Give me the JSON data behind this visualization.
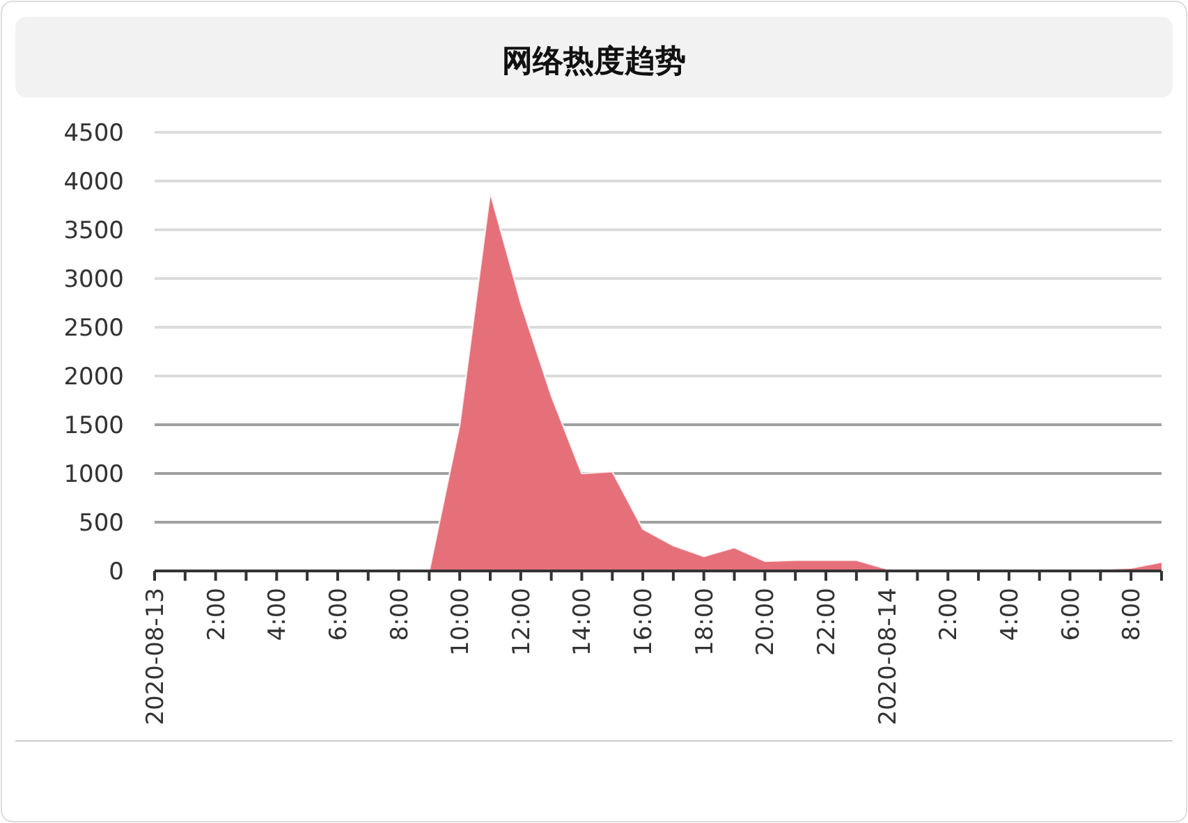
{
  "chart_data": {
    "type": "area",
    "title": "网络热度趋势",
    "x": [
      "2020-08-13T00:00",
      "2020-08-13T01:00",
      "2020-08-13T02:00",
      "2020-08-13T03:00",
      "2020-08-13T04:00",
      "2020-08-13T05:00",
      "2020-08-13T06:00",
      "2020-08-13T07:00",
      "2020-08-13T08:00",
      "2020-08-13T09:00",
      "2020-08-13T10:00",
      "2020-08-13T11:00",
      "2020-08-13T12:00",
      "2020-08-13T13:00",
      "2020-08-13T14:00",
      "2020-08-13T15:00",
      "2020-08-13T16:00",
      "2020-08-13T17:00",
      "2020-08-13T18:00",
      "2020-08-13T19:00",
      "2020-08-13T20:00",
      "2020-08-13T21:00",
      "2020-08-13T22:00",
      "2020-08-13T23:00",
      "2020-08-14T00:00",
      "2020-08-14T01:00",
      "2020-08-14T02:00",
      "2020-08-14T03:00",
      "2020-08-14T04:00",
      "2020-08-14T05:00",
      "2020-08-14T06:00",
      "2020-08-14T07:00",
      "2020-08-14T08:00",
      "2020-08-14T09:00"
    ],
    "series": [
      {
        "color": "#e5707a",
        "values": [
          0,
          0,
          0,
          0,
          0,
          0,
          0,
          0,
          0,
          0,
          1500,
          3880,
          2750,
          1800,
          1000,
          1020,
          430,
          260,
          150,
          240,
          100,
          110,
          110,
          110,
          20,
          0,
          0,
          0,
          0,
          0,
          0,
          20,
          30,
          90
        ]
      }
    ],
    "xlim": [
      "2020-08-13T00:00",
      "2020-08-14T09:00"
    ],
    "xticks": [
      {
        "value": "2020-08-13T00:00",
        "label": "2020-08-13"
      },
      {
        "value": "2020-08-13T01:00",
        "label": null
      },
      {
        "value": "2020-08-13T02:00",
        "label": "2:00"
      },
      {
        "value": "2020-08-13T03:00",
        "label": null
      },
      {
        "value": "2020-08-13T04:00",
        "label": "4:00"
      },
      {
        "value": "2020-08-13T05:00",
        "label": null
      },
      {
        "value": "2020-08-13T06:00",
        "label": "6:00"
      },
      {
        "value": "2020-08-13T07:00",
        "label": null
      },
      {
        "value": "2020-08-13T08:00",
        "label": "8:00"
      },
      {
        "value": "2020-08-13T09:00",
        "label": null
      },
      {
        "value": "2020-08-13T10:00",
        "label": "10:00"
      },
      {
        "value": "2020-08-13T11:00",
        "label": null
      },
      {
        "value": "2020-08-13T12:00",
        "label": "12:00"
      },
      {
        "value": "2020-08-13T13:00",
        "label": null
      },
      {
        "value": "2020-08-13T14:00",
        "label": "14:00"
      },
      {
        "value": "2020-08-13T15:00",
        "label": null
      },
      {
        "value": "2020-08-13T16:00",
        "label": "16:00"
      },
      {
        "value": "2020-08-13T17:00",
        "label": null
      },
      {
        "value": "2020-08-13T18:00",
        "label": "18:00"
      },
      {
        "value": "2020-08-13T19:00",
        "label": null
      },
      {
        "value": "2020-08-13T20:00",
        "label": "20:00"
      },
      {
        "value": "2020-08-13T21:00",
        "label": null
      },
      {
        "value": "2020-08-13T22:00",
        "label": "22:00"
      },
      {
        "value": "2020-08-13T23:00",
        "label": null
      },
      {
        "value": "2020-08-14T00:00",
        "label": "2020-08-14"
      },
      {
        "value": "2020-08-14T01:00",
        "label": null
      },
      {
        "value": "2020-08-14T02:00",
        "label": "2:00"
      },
      {
        "value": "2020-08-14T03:00",
        "label": null
      },
      {
        "value": "2020-08-14T04:00",
        "label": "4:00"
      },
      {
        "value": "2020-08-14T05:00",
        "label": null
      },
      {
        "value": "2020-08-14T06:00",
        "label": "6:00"
      },
      {
        "value": "2020-08-14T07:00",
        "label": null
      },
      {
        "value": "2020-08-14T08:00",
        "label": "8:00"
      },
      {
        "value": "2020-08-14T09:00",
        "label": null
      }
    ],
    "ylim": [
      0,
      4500
    ],
    "yticks": [
      0,
      500,
      1000,
      1500,
      2000,
      2500,
      3000,
      3500,
      4000,
      4500
    ],
    "grid": "y"
  }
}
